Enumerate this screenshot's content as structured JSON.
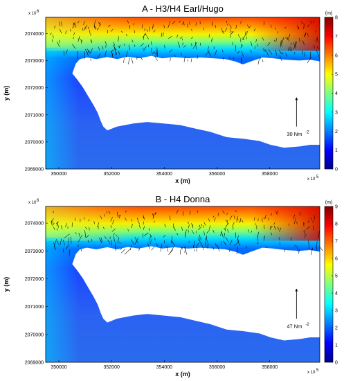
{
  "chart_data": [
    {
      "type": "heatmap",
      "title": "A - H3/H4 Earl/Hugo",
      "xlabel": "x (m)",
      "ylabel": "y (m)",
      "x_multiplier": "x 10",
      "y_multiplier": "x 10",
      "multiplier_exponent": "5",
      "y_multiplier_exponent": "6",
      "xlim": [
        349500,
        359900
      ],
      "ylim": [
        2069000,
        2074600
      ],
      "x_ticks": [
        "350000",
        "352000",
        "354000",
        "356000",
        "358000"
      ],
      "x_tick_values": [
        350000,
        352000,
        354000,
        356000,
        358000
      ],
      "y_ticks": [
        "2069000",
        "2070000",
        "2071000",
        "2072000",
        "2073000",
        "2074000"
      ],
      "y_tick_values": [
        2069000,
        2070000,
        2071000,
        2072000,
        2073000,
        2074000
      ],
      "colorbar_unit": "(m)",
      "colorbar_ticks": [
        "0",
        "1",
        "2",
        "3",
        "4",
        "5",
        "6",
        "7",
        "8"
      ],
      "colorbar_range": [
        0,
        8
      ],
      "scale_arrow_label": "30 Nm",
      "scale_arrow_exponent": "-2",
      "grid": false
    },
    {
      "type": "heatmap",
      "title": "B - H4 Donna",
      "xlabel": "x (m)",
      "ylabel": "y (m)",
      "x_multiplier": "x 10",
      "y_multiplier": "x 10",
      "multiplier_exponent": "5",
      "y_multiplier_exponent": "6",
      "xlim": [
        349500,
        359900
      ],
      "ylim": [
        2069000,
        2074600
      ],
      "x_ticks": [
        "350000",
        "352000",
        "354000",
        "356000",
        "358000"
      ],
      "x_tick_values": [
        350000,
        352000,
        354000,
        356000,
        358000
      ],
      "y_ticks": [
        "2069000",
        "2070000",
        "2071000",
        "2072000",
        "2073000",
        "2074000"
      ],
      "y_tick_values": [
        2069000,
        2070000,
        2071000,
        2072000,
        2073000,
        2074000
      ],
      "colorbar_unit": "(m)",
      "colorbar_ticks": [
        "0",
        "1",
        "2",
        "3",
        "4",
        "5",
        "6",
        "7",
        "8",
        "9"
      ],
      "colorbar_range": [
        0,
        9
      ],
      "scale_arrow_label": "47 Nm",
      "scale_arrow_exponent": "-2",
      "grid": false
    }
  ]
}
